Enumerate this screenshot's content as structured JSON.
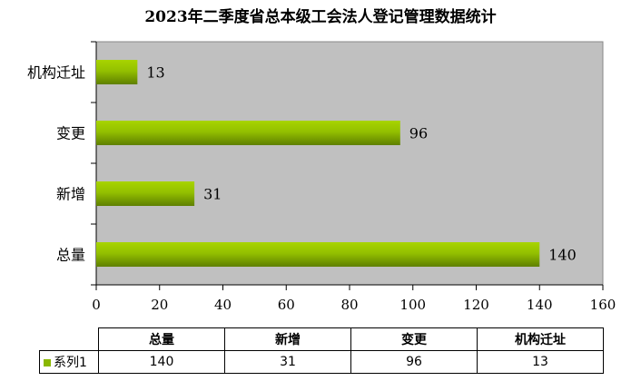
{
  "chart_data": {
    "type": "bar",
    "orientation": "horizontal",
    "title": "2023年二季度省总本级工会法人登记管理数据统计",
    "categories": [
      "总量",
      "新增",
      "变更",
      "机构迁址"
    ],
    "series": [
      {
        "name": "系列1",
        "values": [
          140,
          31,
          96,
          13
        ]
      }
    ],
    "xlim": [
      0,
      160
    ],
    "x_ticks": [
      0,
      20,
      40,
      60,
      80,
      100,
      120,
      140,
      160
    ],
    "grid": false,
    "data_labels": true,
    "data_table": true,
    "colors": {
      "bar_top": "#a8d400",
      "bar_bottom": "#5e7f00",
      "plot_bg": "#c0c0c0"
    }
  }
}
